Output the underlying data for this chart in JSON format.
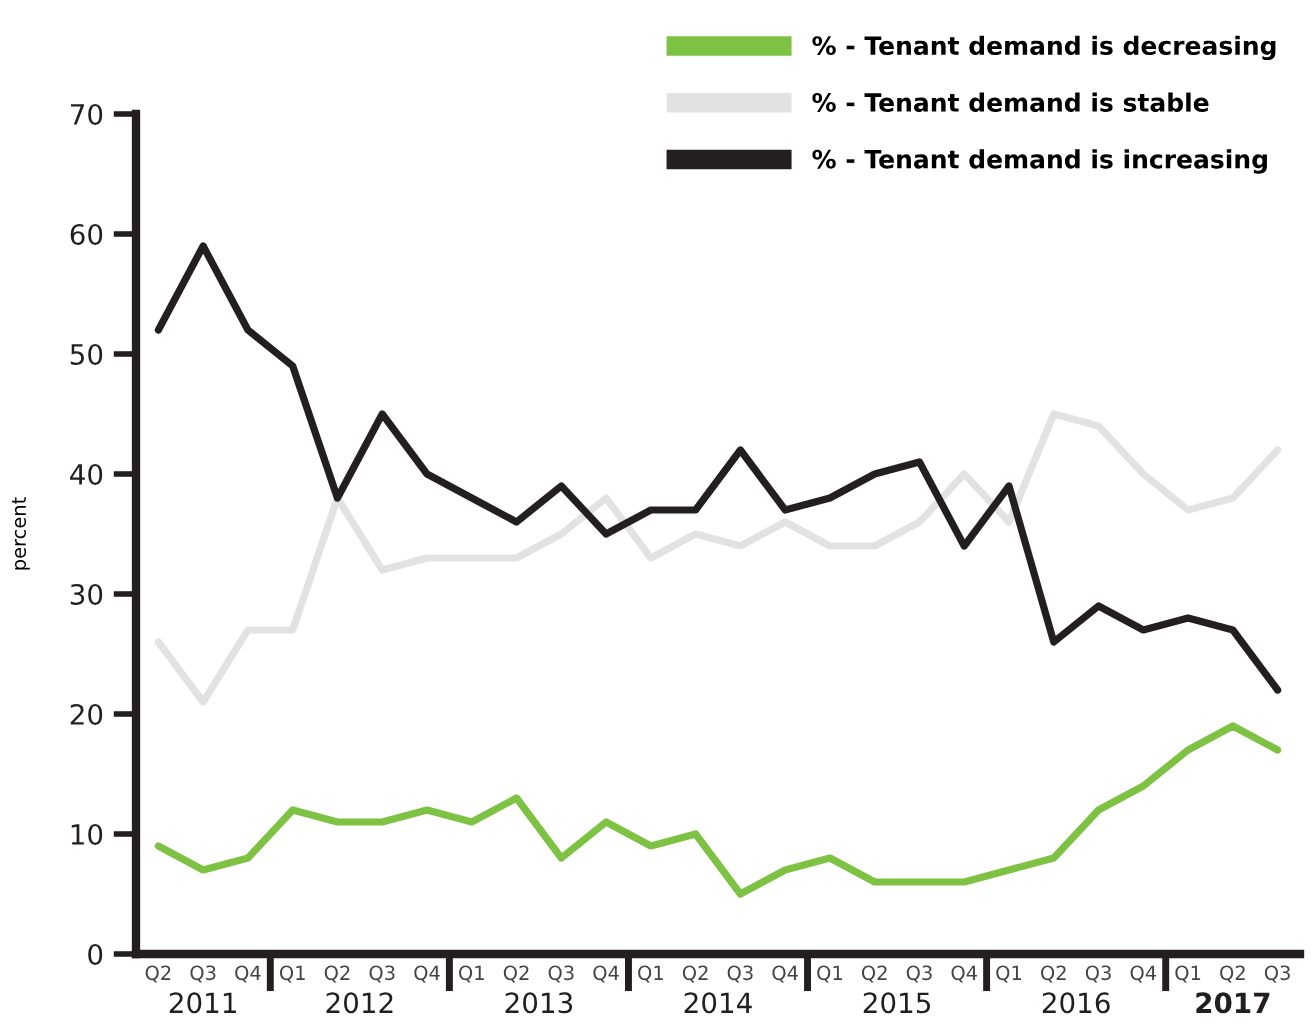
{
  "chart_data": {
    "type": "line",
    "ylabel": "percent",
    "categories": [
      "Q2",
      "Q3",
      "Q4",
      "Q1",
      "Q2",
      "Q3",
      "Q4",
      "Q1",
      "Q2",
      "Q3",
      "Q4",
      "Q1",
      "Q2",
      "Q3",
      "Q4",
      "Q1",
      "Q2",
      "Q3",
      "Q4",
      "Q1",
      "Q2",
      "Q3",
      "Q4",
      "Q1",
      "Q2",
      "Q3"
    ],
    "annotations": [
      "2011",
      "2012",
      "2013",
      "2014",
      "2015",
      "2016",
      "2017"
    ],
    "series": [
      {
        "name": "% - Tenant demand is decreasing",
        "color": "#7dc242",
        "values": [
          9,
          7,
          8,
          12,
          11,
          11,
          12,
          11,
          13,
          8,
          11,
          9,
          10,
          5,
          7,
          8,
          6,
          6,
          6,
          7,
          8,
          12,
          14,
          17,
          19,
          17
        ]
      },
      {
        "name": "% - Tenant demand is stable",
        "color": "#e2e2e2",
        "values": [
          26,
          21,
          27,
          27,
          38,
          32,
          33,
          33,
          33,
          35,
          38,
          33,
          35,
          34,
          36,
          34,
          34,
          36,
          40,
          36,
          45,
          44,
          40,
          37,
          38,
          42
        ]
      },
      {
        "name": "% - Tenant demand is increasing",
        "color": "#231f20",
        "values": [
          52,
          59,
          52,
          49,
          38,
          45,
          40,
          38,
          36,
          39,
          35,
          37,
          37,
          42,
          37,
          38,
          40,
          41,
          34,
          39,
          26,
          29,
          27,
          28,
          27,
          22
        ]
      }
    ],
    "ylim": [
      0,
      70
    ],
    "yticks": [
      0,
      10,
      20,
      30,
      40,
      50,
      60,
      70
    ],
    "legend": "top right",
    "marker": "none",
    "line_style": "solid"
  }
}
